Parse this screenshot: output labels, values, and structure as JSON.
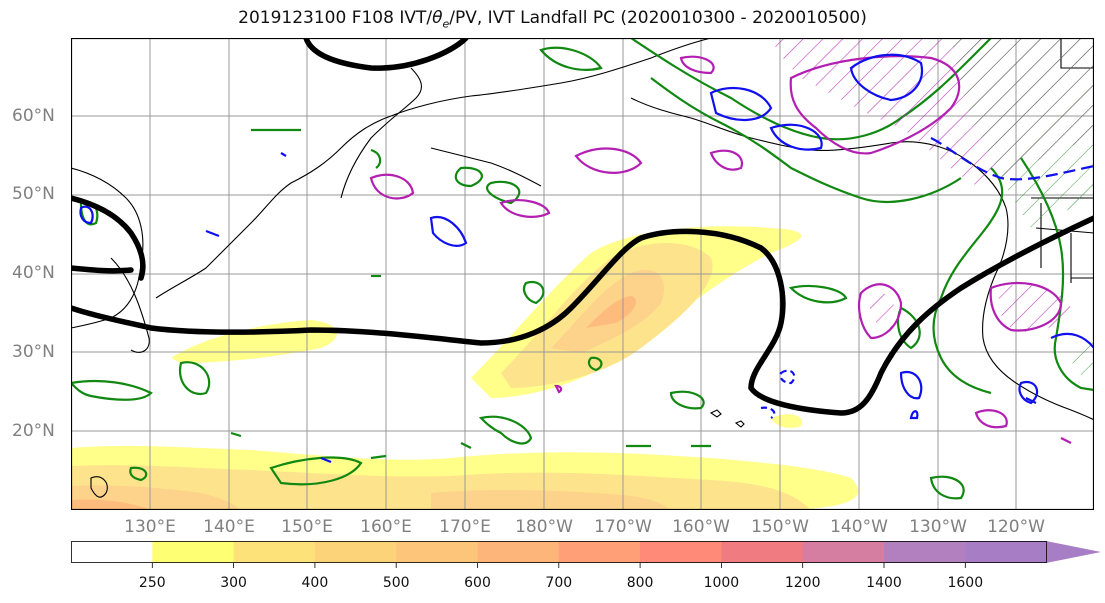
{
  "title": "2019123100 F108 IVT/θe/PV, IVT Landfall PC (2020010300 - 2020010500)",
  "title_parts": {
    "prefix": "2019123100 F108 IVT/",
    "theta": "θ",
    "sub": "e",
    "suffix": "/PV, IVT Landfall PC (2020010300 - 2020010500)"
  },
  "lat_labels": [
    "60°N",
    "50°N",
    "40°N",
    "30°N",
    "20°N"
  ],
  "lon_labels": [
    "130°E",
    "140°E",
    "150°E",
    "160°E",
    "170°E",
    "180°W",
    "170°W",
    "160°W",
    "150°W",
    "140°W",
    "130°W",
    "120°W"
  ],
  "colorbar": {
    "ticks": [
      "250",
      "300",
      "400",
      "500",
      "600",
      "700",
      "800",
      "1000",
      "1200",
      "1400",
      "1600"
    ],
    "colors": [
      "#ffffff",
      "#ffff73",
      "#fde27a",
      "#fdd37a",
      "#fdc57a",
      "#feb57a",
      "#ff9f77",
      "#ff8a77",
      "#f07c82",
      "#d67ea2",
      "#b27fbf",
      "#a77ec5"
    ],
    "extend": "max"
  },
  "chart_data": {
    "type": "map",
    "fields": [
      "IVT (filled)",
      "theta-e (green)",
      "PV (blue/magenta)",
      "landfall PC (black)"
    ],
    "extent": {
      "lon": [
        120,
        250
      ],
      "lat": [
        10,
        70
      ]
    },
    "grid": true
  }
}
